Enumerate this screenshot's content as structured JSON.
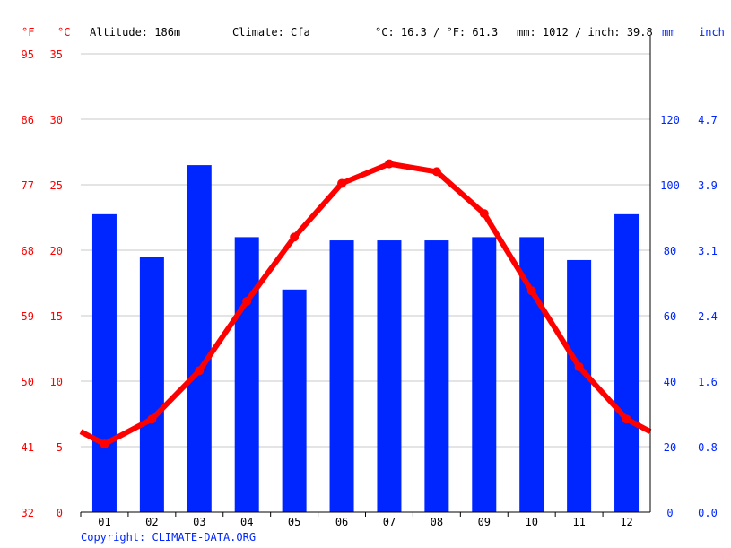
{
  "header": {
    "f_unit": "°F",
    "c_unit": "°C",
    "altitude": "Altitude: 186m",
    "climate": "Climate: Cfa",
    "avg_temp": "°C: 16.3 / °F: 61.3",
    "avg_precip": "mm: 1012 / inch: 39.8",
    "mm_unit": "mm",
    "inch_unit": "inch"
  },
  "copyright": "Copyright: CLIMATE-DATA.ORG",
  "colors": {
    "temperature": "#ff0000",
    "precipitation": "#0026ff",
    "grid": "#c8c8c8"
  },
  "chart_data": {
    "type": "bar+line",
    "categories": [
      "01",
      "02",
      "03",
      "04",
      "05",
      "06",
      "07",
      "08",
      "09",
      "10",
      "11",
      "12"
    ],
    "series": [
      {
        "type": "bar",
        "unit": "mm",
        "values": [
          91,
          78,
          106,
          84,
          68,
          83,
          83,
          83,
          84,
          84,
          77,
          91
        ]
      },
      {
        "type": "line",
        "unit": "°C",
        "values": [
          5.2,
          7.1,
          10.8,
          16.1,
          21.0,
          25.1,
          26.6,
          26.0,
          22.8,
          16.9,
          11.1,
          7.1
        ]
      }
    ],
    "ylim_c": [
      0,
      35
    ],
    "ylim_mm": [
      0,
      140
    ],
    "ticks_f": [
      "32",
      "41",
      "50",
      "59",
      "68",
      "77",
      "86",
      "95"
    ],
    "ticks_c": [
      "0",
      "5",
      "10",
      "15",
      "20",
      "25",
      "30",
      "35"
    ],
    "ticks_mm": [
      "0",
      "20",
      "40",
      "60",
      "80",
      "100",
      "120"
    ],
    "ticks_inch": [
      "0.0",
      "0.8",
      "1.6",
      "2.4",
      "3.1",
      "3.9",
      "4.7"
    ],
    "grid": true
  }
}
